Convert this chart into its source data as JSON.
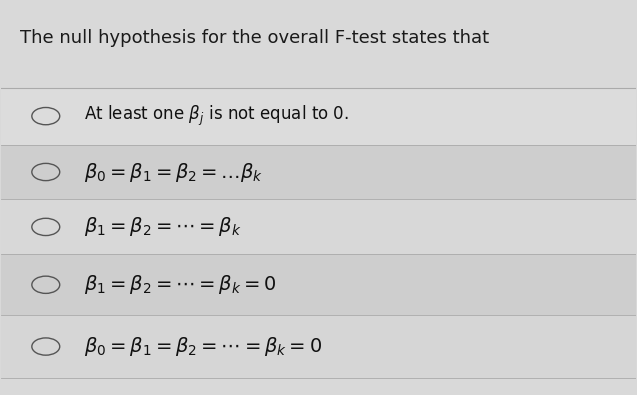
{
  "title": "The null hypothesis for the overall F-test states that",
  "title_fontsize": 13,
  "title_color": "#1a1a1a",
  "bg_color": "#e8e8e8",
  "row_bg_colors": [
    "#d8d8d8",
    "#c8c8c8",
    "#d0d0d0",
    "#c8c8c8",
    "#d4d4d4"
  ],
  "options": [
    "At least one $\\beta_j$ is not equal to 0.",
    "$\\beta_0 = \\beta_1 = \\beta_2 = \\ldots \\beta_k$",
    "$\\beta_1 = \\beta_2 = \\cdots = \\beta_k$",
    "$\\beta_1 = \\beta_2 = \\cdots = \\beta_k = 0$",
    "$\\beta_0 = \\beta_1 = \\beta_2 = \\cdots = \\beta_k = 0$"
  ],
  "option_fontsizes": [
    12,
    14,
    14,
    14,
    14
  ],
  "figsize": [
    6.37,
    3.95
  ],
  "dpi": 100
}
